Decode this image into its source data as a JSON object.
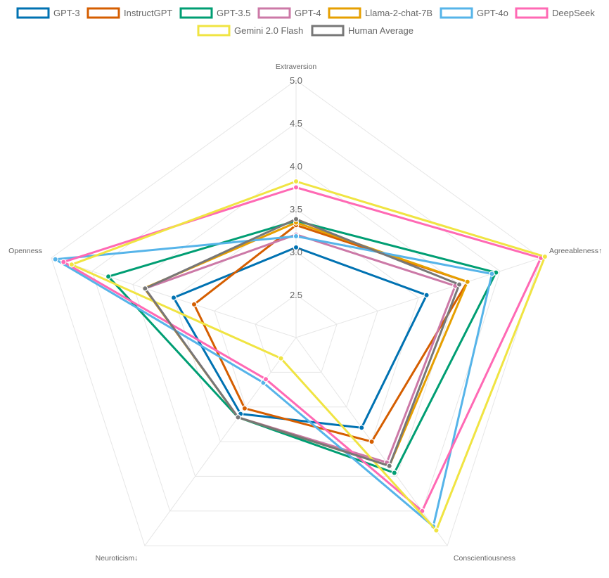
{
  "chart_data": {
    "type": "radar",
    "axes": [
      "Extraversion",
      "Agreeableness↑",
      "Conscientiousness",
      "Neuroticism↓",
      "Openness"
    ],
    "r_ticks": [
      "2.5",
      "3.0",
      "3.5",
      "4.0",
      "4.5",
      "5.0"
    ],
    "r_range": [
      2.0,
      5.0
    ],
    "grid": true,
    "legend_position": "top",
    "series": [
      {
        "name": "GPT-3",
        "color": "#0072B2",
        "values": [
          3.05,
          3.6,
          3.3,
          3.1,
          3.5
        ]
      },
      {
        "name": "InstructGPT",
        "color": "#D55E00",
        "values": [
          3.31,
          4.1,
          3.5,
          3.02,
          3.25
        ]
      },
      {
        "name": "GPT-3.5",
        "color": "#009E73",
        "values": [
          3.36,
          4.45,
          3.95,
          3.15,
          4.3
        ]
      },
      {
        "name": "GPT-4",
        "color": "#CC79A7",
        "values": [
          3.2,
          3.95,
          3.8,
          3.15,
          3.85
        ]
      },
      {
        "name": "Llama-2-chat-7B",
        "color": "#E69F00",
        "values": [
          3.34,
          4.1,
          3.85,
          3.15,
          3.86
        ]
      },
      {
        "name": "GPT-4o",
        "color": "#56B4E9",
        "values": [
          3.18,
          4.4,
          4.72,
          2.65,
          4.95
        ]
      },
      {
        "name": "DeepSeek",
        "color": "#FF69B4",
        "values": [
          3.75,
          5.0,
          4.5,
          2.6,
          4.85
        ]
      },
      {
        "name": "Gemini 2.0 Flash",
        "color": "#F0E442",
        "values": [
          3.82,
          5.05,
          4.78,
          2.3,
          4.75
        ]
      },
      {
        "name": "Human Average",
        "color": "#777777",
        "values": [
          3.38,
          4.0,
          3.85,
          3.15,
          3.85
        ]
      }
    ]
  }
}
